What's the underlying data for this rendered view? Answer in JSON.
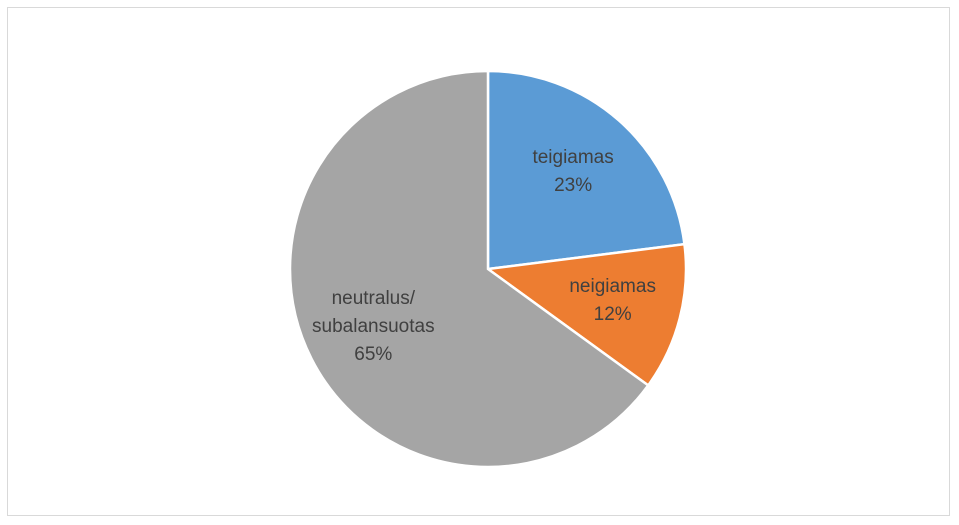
{
  "chart_data": {
    "type": "pie",
    "categories": [
      "teigiamas",
      "neigiamas",
      "neutralus/ subalansuotas"
    ],
    "values": [
      23,
      12,
      65
    ],
    "value_labels": [
      "23%",
      "12%",
      "65%"
    ],
    "colors": [
      "#5b9bd5",
      "#ed7d31",
      "#a5a5a5"
    ]
  }
}
